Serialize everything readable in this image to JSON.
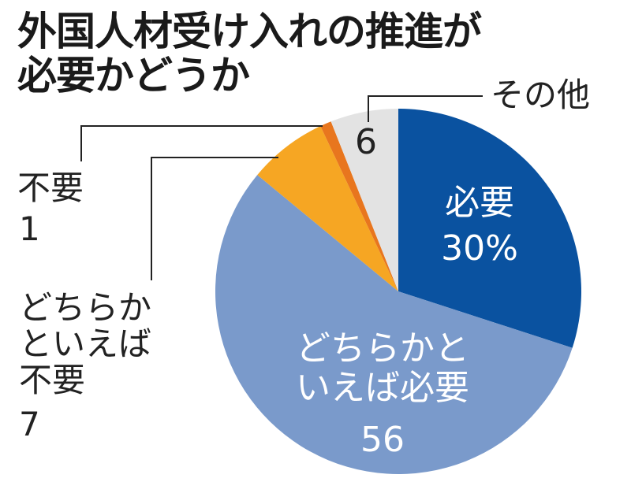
{
  "title": {
    "line1": "外国人材受け入れの推進が",
    "line2": "必要かどうか"
  },
  "labels": {
    "necessary_name": "必要",
    "necessary_value": "30%",
    "somewhat_necessary_line1": "どちらかと",
    "somewhat_necessary_line2": "いえば必要",
    "somewhat_necessary_value": "56",
    "somewhat_unnecessary_line1": "どちらか",
    "somewhat_unnecessary_line2": "といえば",
    "somewhat_unnecessary_line3": "不要",
    "somewhat_unnecessary_value": "7",
    "unnecessary_name": "不要",
    "unnecessary_value": "1",
    "other_name": "その他",
    "other_value": "6"
  },
  "colors": {
    "necessary": "#0a52a0",
    "somewhat_necessary": "#7a9acb",
    "somewhat_unnecessary": "#f6a623",
    "unnecessary": "#e8761e",
    "other": "#e3e3e3"
  },
  "chart_data": {
    "type": "pie",
    "title": "外国人材受け入れの推進が必要かどうか",
    "unit": "%",
    "start_angle": "12 o'clock, clockwise",
    "categories": [
      "必要",
      "どちらかといえば必要",
      "どちらかといえば不要",
      "不要",
      "その他"
    ],
    "values": [
      30,
      56,
      7,
      1,
      6
    ],
    "colors": [
      "#0a52a0",
      "#7a9acb",
      "#f6a623",
      "#e8761e",
      "#e3e3e3"
    ]
  }
}
